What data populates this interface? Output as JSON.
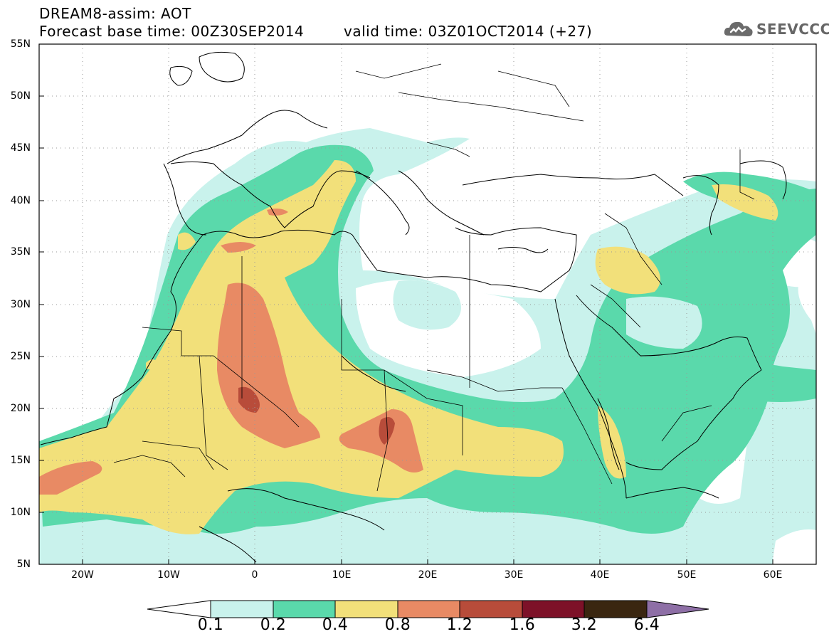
{
  "header": {
    "title_line": "DREAM8-assim: AOT",
    "base_time": "Forecast base time: 00Z30SEP2014",
    "valid_time": "valid time: 03Z01OCT2014 (+27)"
  },
  "logo": {
    "text": "SEEVCCC",
    "icon": "cloud-icon"
  },
  "map": {
    "lat_labels": [
      "55N",
      "50N",
      "45N",
      "40N",
      "35N",
      "30N",
      "25N",
      "20N",
      "15N",
      "10N",
      "5N"
    ],
    "lon_labels": [
      "20W",
      "10W",
      "0",
      "10E",
      "20E",
      "30E",
      "40E",
      "50E",
      "60E"
    ],
    "lon_range": [
      -25,
      65
    ],
    "lat_range": [
      5,
      55
    ]
  },
  "legend": {
    "labels": [
      "0.1",
      "0.2",
      "0.4",
      "0.8",
      "1.2",
      "1.6",
      "3.2",
      "6.4"
    ],
    "colors": [
      "#c9f2ec",
      "#5ad9ab",
      "#f2e07a",
      "#e88a64",
      "#b84c3a",
      "#7d1128",
      "#3a2610",
      "#8e6fa6"
    ]
  }
}
